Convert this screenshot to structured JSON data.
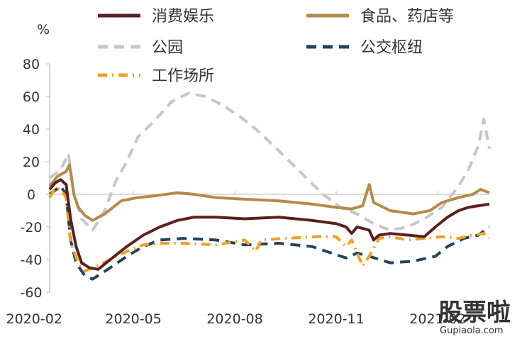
{
  "chart_data": {
    "type": "line",
    "title": "",
    "xlabel": "",
    "ylabel": "%",
    "ylim": [
      -60,
      80
    ],
    "yticks": [
      80,
      60,
      40,
      20,
      0,
      -20,
      -40,
      -60
    ],
    "xticks": [
      "2020-02",
      "2020-05",
      "2020-08",
      "2020-11",
      "2021-02"
    ],
    "x_range": [
      "2020-02-15",
      "2021-03-20"
    ],
    "legend_position": "top",
    "series": [
      {
        "name": "消费娱乐",
        "color": "#5a1f1f",
        "dash": "solid",
        "points": [
          [
            "2020-02-15",
            3
          ],
          [
            "2020-02-20",
            7
          ],
          [
            "2020-02-25",
            9
          ],
          [
            "2020-03-01",
            6
          ],
          [
            "2020-03-05",
            -15
          ],
          [
            "2020-03-10",
            -32
          ],
          [
            "2020-03-15",
            -42
          ],
          [
            "2020-03-22",
            -45
          ],
          [
            "2020-03-30",
            -46
          ],
          [
            "2020-04-10",
            -40
          ],
          [
            "2020-04-25",
            -32
          ],
          [
            "2020-05-10",
            -25
          ],
          [
            "2020-05-25",
            -20
          ],
          [
            "2020-06-10",
            -16
          ],
          [
            "2020-06-25",
            -14
          ],
          [
            "2020-07-15",
            -14
          ],
          [
            "2020-08-10",
            -15
          ],
          [
            "2020-09-10",
            -14
          ],
          [
            "2020-10-10",
            -16
          ],
          [
            "2020-11-01",
            -18
          ],
          [
            "2020-11-10",
            -20
          ],
          [
            "2020-11-15",
            -24
          ],
          [
            "2020-11-20",
            -20
          ],
          [
            "2020-12-01",
            -22
          ],
          [
            "2020-12-05",
            -28
          ],
          [
            "2020-12-10",
            -25
          ],
          [
            "2020-12-20",
            -24
          ],
          [
            "2021-01-05",
            -25
          ],
          [
            "2021-01-20",
            -26
          ],
          [
            "2021-01-30",
            -20
          ],
          [
            "2021-02-10",
            -14
          ],
          [
            "2021-02-20",
            -10
          ],
          [
            "2021-03-01",
            -8
          ],
          [
            "2021-03-10",
            -7
          ],
          [
            "2021-03-20",
            -6
          ]
        ]
      },
      {
        "name": "食品、药店等",
        "color": "#b58a4a",
        "dash": "solid",
        "points": [
          [
            "2020-02-15",
            5
          ],
          [
            "2020-02-22",
            11
          ],
          [
            "2020-03-01",
            14
          ],
          [
            "2020-03-04",
            18
          ],
          [
            "2020-03-08",
            0
          ],
          [
            "2020-03-12",
            -8
          ],
          [
            "2020-03-18",
            -13
          ],
          [
            "2020-03-25",
            -16
          ],
          [
            "2020-04-05",
            -12
          ],
          [
            "2020-04-20",
            -4
          ],
          [
            "2020-05-05",
            -2
          ],
          [
            "2020-05-20",
            -1
          ],
          [
            "2020-06-10",
            1
          ],
          [
            "2020-06-25",
            0
          ],
          [
            "2020-07-15",
            -2
          ],
          [
            "2020-08-10",
            -3
          ],
          [
            "2020-09-10",
            -4
          ],
          [
            "2020-10-10",
            -6
          ],
          [
            "2020-11-01",
            -8
          ],
          [
            "2020-11-15",
            -9
          ],
          [
            "2020-11-25",
            -7
          ],
          [
            "2020-12-01",
            6
          ],
          [
            "2020-12-05",
            -5
          ],
          [
            "2020-12-20",
            -10
          ],
          [
            "2021-01-10",
            -12
          ],
          [
            "2021-01-25",
            -10
          ],
          [
            "2021-02-05",
            -5
          ],
          [
            "2021-02-20",
            -2
          ],
          [
            "2021-03-05",
            0
          ],
          [
            "2021-03-12",
            3
          ],
          [
            "2021-03-20",
            1
          ]
        ]
      },
      {
        "name": "公园",
        "color": "#c6c6c6",
        "dash": "dash",
        "points": [
          [
            "2020-02-15",
            10
          ],
          [
            "2020-02-25",
            15
          ],
          [
            "2020-03-03",
            25
          ],
          [
            "2020-03-08",
            0
          ],
          [
            "2020-03-15",
            -15
          ],
          [
            "2020-03-25",
            -22
          ],
          [
            "2020-04-05",
            -10
          ],
          [
            "2020-04-15",
            8
          ],
          [
            "2020-04-25",
            20
          ],
          [
            "2020-05-05",
            35
          ],
          [
            "2020-05-20",
            45
          ],
          [
            "2020-06-05",
            57
          ],
          [
            "2020-06-20",
            62
          ],
          [
            "2020-07-05",
            60
          ],
          [
            "2020-07-20",
            55
          ],
          [
            "2020-08-05",
            48
          ],
          [
            "2020-08-20",
            40
          ],
          [
            "2020-09-05",
            30
          ],
          [
            "2020-09-20",
            20
          ],
          [
            "2020-10-05",
            10
          ],
          [
            "2020-10-20",
            0
          ],
          [
            "2020-11-05",
            -8
          ],
          [
            "2020-11-20",
            -12
          ],
          [
            "2020-12-05",
            -18
          ],
          [
            "2020-12-20",
            -22
          ],
          [
            "2021-01-05",
            -20
          ],
          [
            "2021-01-20",
            -15
          ],
          [
            "2021-02-05",
            -8
          ],
          [
            "2021-02-20",
            5
          ],
          [
            "2021-03-01",
            15
          ],
          [
            "2021-03-10",
            30
          ],
          [
            "2021-03-15",
            46
          ],
          [
            "2021-03-20",
            28
          ]
        ]
      },
      {
        "name": "公交枢纽",
        "color": "#24425e",
        "dash": "dash",
        "points": [
          [
            "2020-02-15",
            0
          ],
          [
            "2020-02-25",
            5
          ],
          [
            "2020-03-01",
            0
          ],
          [
            "2020-03-05",
            -28
          ],
          [
            "2020-03-10",
            -42
          ],
          [
            "2020-03-18",
            -50
          ],
          [
            "2020-03-25",
            -52
          ],
          [
            "2020-04-10",
            -45
          ],
          [
            "2020-04-25",
            -38
          ],
          [
            "2020-05-10",
            -32
          ],
          [
            "2020-05-25",
            -28
          ],
          [
            "2020-06-15",
            -27
          ],
          [
            "2020-07-15",
            -28
          ],
          [
            "2020-08-10",
            -31
          ],
          [
            "2020-09-10",
            -30
          ],
          [
            "2020-10-10",
            -32
          ],
          [
            "2020-11-01",
            -37
          ],
          [
            "2020-11-10",
            -39
          ],
          [
            "2020-11-20",
            -36
          ],
          [
            "2020-12-01",
            -38
          ],
          [
            "2020-12-20",
            -42
          ],
          [
            "2021-01-10",
            -41
          ],
          [
            "2021-01-30",
            -38
          ],
          [
            "2021-02-10",
            -32
          ],
          [
            "2021-02-25",
            -27
          ],
          [
            "2021-03-10",
            -25
          ],
          [
            "2021-03-20",
            -20
          ]
        ]
      },
      {
        "name": "工作场所",
        "color": "#f0a020",
        "dash": "dashdot",
        "points": [
          [
            "2020-02-15",
            -2
          ],
          [
            "2020-02-20",
            4
          ],
          [
            "2020-02-25",
            3
          ],
          [
            "2020-03-01",
            -2
          ],
          [
            "2020-03-05",
            -30
          ],
          [
            "2020-03-12",
            -42
          ],
          [
            "2020-03-18",
            -47
          ],
          [
            "2020-03-25",
            -45
          ],
          [
            "2020-04-10",
            -40
          ],
          [
            "2020-04-25",
            -35
          ],
          [
            "2020-05-10",
            -31
          ],
          [
            "2020-05-25",
            -30
          ],
          [
            "2020-06-15",
            -30
          ],
          [
            "2020-07-15",
            -31
          ],
          [
            "2020-08-10",
            -28
          ],
          [
            "2020-08-20",
            -35
          ],
          [
            "2020-08-25",
            -28
          ],
          [
            "2020-09-15",
            -27
          ],
          [
            "2020-10-15",
            -26
          ],
          [
            "2020-11-01",
            -26
          ],
          [
            "2020-11-10",
            -32
          ],
          [
            "2020-11-15",
            -28
          ],
          [
            "2020-11-25",
            -44
          ],
          [
            "2020-12-01",
            -38
          ],
          [
            "2020-12-10",
            -27
          ],
          [
            "2020-12-20",
            -26
          ],
          [
            "2021-01-05",
            -28
          ],
          [
            "2021-01-20",
            -27
          ],
          [
            "2021-02-05",
            -26
          ],
          [
            "2021-02-20",
            -27
          ],
          [
            "2021-03-05",
            -25
          ],
          [
            "2021-03-15",
            -24
          ],
          [
            "2021-03-20",
            -27
          ]
        ]
      }
    ]
  },
  "watermark": {
    "main": "股票",
    "accent": "啦",
    "url": "Gupiaola.com",
    "accent_color": "#cc2222"
  }
}
